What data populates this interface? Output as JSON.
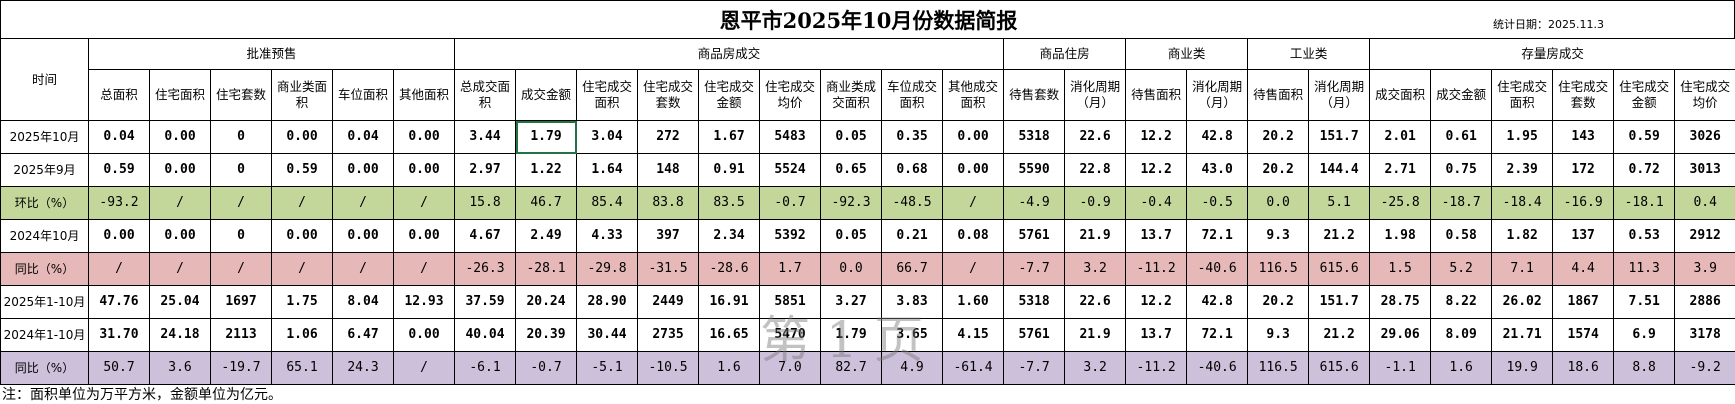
{
  "title": "恩平市2025年10月份数据简报",
  "stat_date": "统计日期：2025.11.3",
  "table": {
    "time_header": "时间",
    "groups": [
      {
        "label": "批准预售",
        "columns": [
          "总面积",
          "住宅面积",
          "住宅套数",
          "商业类面积",
          "车位面积",
          "其他面积"
        ]
      },
      {
        "label": "商品房成交",
        "columns": [
          "总成交面积",
          "成交金额",
          "住宅成交面积",
          "住宅成交套数",
          "住宅成交金额",
          "住宅成交均价",
          "商业类成交面积",
          "车位成交面积",
          "其他成交面积"
        ]
      },
      {
        "label": "商品住房",
        "columns": [
          "待售套数",
          "消化周期（月）"
        ]
      },
      {
        "label": "商业类",
        "columns": [
          "待售面积",
          "消化周期（月）"
        ]
      },
      {
        "label": "工业类",
        "columns": [
          "待售面积",
          "消化周期（月）"
        ]
      },
      {
        "label": "存量房成交",
        "columns": [
          "成交面积",
          "成交金额",
          "住宅成交面积",
          "住宅成交套数",
          "住宅成交金额",
          "住宅成交均价"
        ]
      }
    ],
    "rows": [
      {
        "label": "2025年10月",
        "cells": [
          "0.04",
          "0.00",
          "0",
          "0.00",
          "0.04",
          "0.00",
          "3.44",
          "1.79",
          "3.04",
          "272",
          "1.67",
          "5483",
          "0.05",
          "0.35",
          "0.00",
          "5318",
          "22.6",
          "12.2",
          "42.8",
          "20.2",
          "151.7",
          "2.01",
          "0.61",
          "1.95",
          "143",
          "0.59",
          "3026"
        ]
      },
      {
        "label": "2025年9月",
        "cells": [
          "0.59",
          "0.00",
          "0",
          "0.59",
          "0.00",
          "0.00",
          "2.97",
          "1.22",
          "1.64",
          "148",
          "0.91",
          "5524",
          "0.65",
          "0.68",
          "0.00",
          "5590",
          "22.8",
          "12.2",
          "43.0",
          "20.2",
          "144.4",
          "2.71",
          "0.75",
          "2.39",
          "172",
          "0.72",
          "3013"
        ]
      },
      {
        "label": "环比（%）",
        "cells": [
          "-93.2",
          "/",
          "/",
          "/",
          "/",
          "/",
          "15.8",
          "46.7",
          "85.4",
          "83.8",
          "83.5",
          "-0.7",
          "-92.3",
          "-48.5",
          "/",
          "-4.9",
          "-0.9",
          "-0.4",
          "-0.5",
          "0.0",
          "5.1",
          "-25.8",
          "-18.7",
          "-18.4",
          "-16.9",
          "-18.1",
          "0.4"
        ]
      },
      {
        "label": "2024年10月",
        "cells": [
          "0.00",
          "0.00",
          "0",
          "0.00",
          "0.00",
          "0.00",
          "4.67",
          "2.49",
          "4.33",
          "397",
          "2.34",
          "5392",
          "0.05",
          "0.21",
          "0.08",
          "5761",
          "21.9",
          "13.7",
          "72.1",
          "9.3",
          "21.2",
          "1.98",
          "0.58",
          "1.82",
          "137",
          "0.53",
          "2912"
        ]
      },
      {
        "label": "同比（%）",
        "cells": [
          "/",
          "/",
          "/",
          "/",
          "/",
          "/",
          "-26.3",
          "-28.1",
          "-29.8",
          "-31.5",
          "-28.6",
          "1.7",
          "0.0",
          "66.7",
          "/",
          "-7.7",
          "3.2",
          "-11.2",
          "-40.6",
          "116.5",
          "615.6",
          "1.5",
          "5.2",
          "7.1",
          "4.4",
          "11.3",
          "3.9"
        ]
      },
      {
        "label": "2025年1-10月",
        "cells": [
          "47.76",
          "25.04",
          "1697",
          "1.75",
          "8.04",
          "12.93",
          "37.59",
          "20.24",
          "28.90",
          "2449",
          "16.91",
          "5851",
          "3.27",
          "3.83",
          "1.60",
          "5318",
          "22.6",
          "12.2",
          "42.8",
          "20.2",
          "151.7",
          "28.75",
          "8.22",
          "26.02",
          "1867",
          "7.51",
          "2886"
        ]
      },
      {
        "label": "2024年1-10月",
        "cells": [
          "31.70",
          "24.18",
          "2113",
          "1.06",
          "6.47",
          "0.00",
          "40.04",
          "20.39",
          "30.44",
          "2735",
          "16.65",
          "5470",
          "1.79",
          "3.65",
          "4.15",
          "5761",
          "21.9",
          "13.7",
          "72.1",
          "9.3",
          "21.2",
          "29.06",
          "8.09",
          "21.71",
          "1574",
          "6.9",
          "3178"
        ]
      },
      {
        "label": "同比（%）",
        "cells": [
          "50.7",
          "3.6",
          "-19.7",
          "65.1",
          "24.3",
          "/",
          "-6.1",
          "-0.7",
          "-5.1",
          "-10.5",
          "1.6",
          "7.0",
          "82.7",
          "4.9",
          "-61.4",
          "-7.7",
          "3.2",
          "-11.2",
          "-40.6",
          "116.5",
          "615.6",
          "-1.1",
          "1.6",
          "19.9",
          "18.6",
          "8.8",
          "-9.2"
        ]
      }
    ]
  },
  "watermark": "第 1 页",
  "note": "注：面积单位为万平方米，金额单位为亿元。"
}
